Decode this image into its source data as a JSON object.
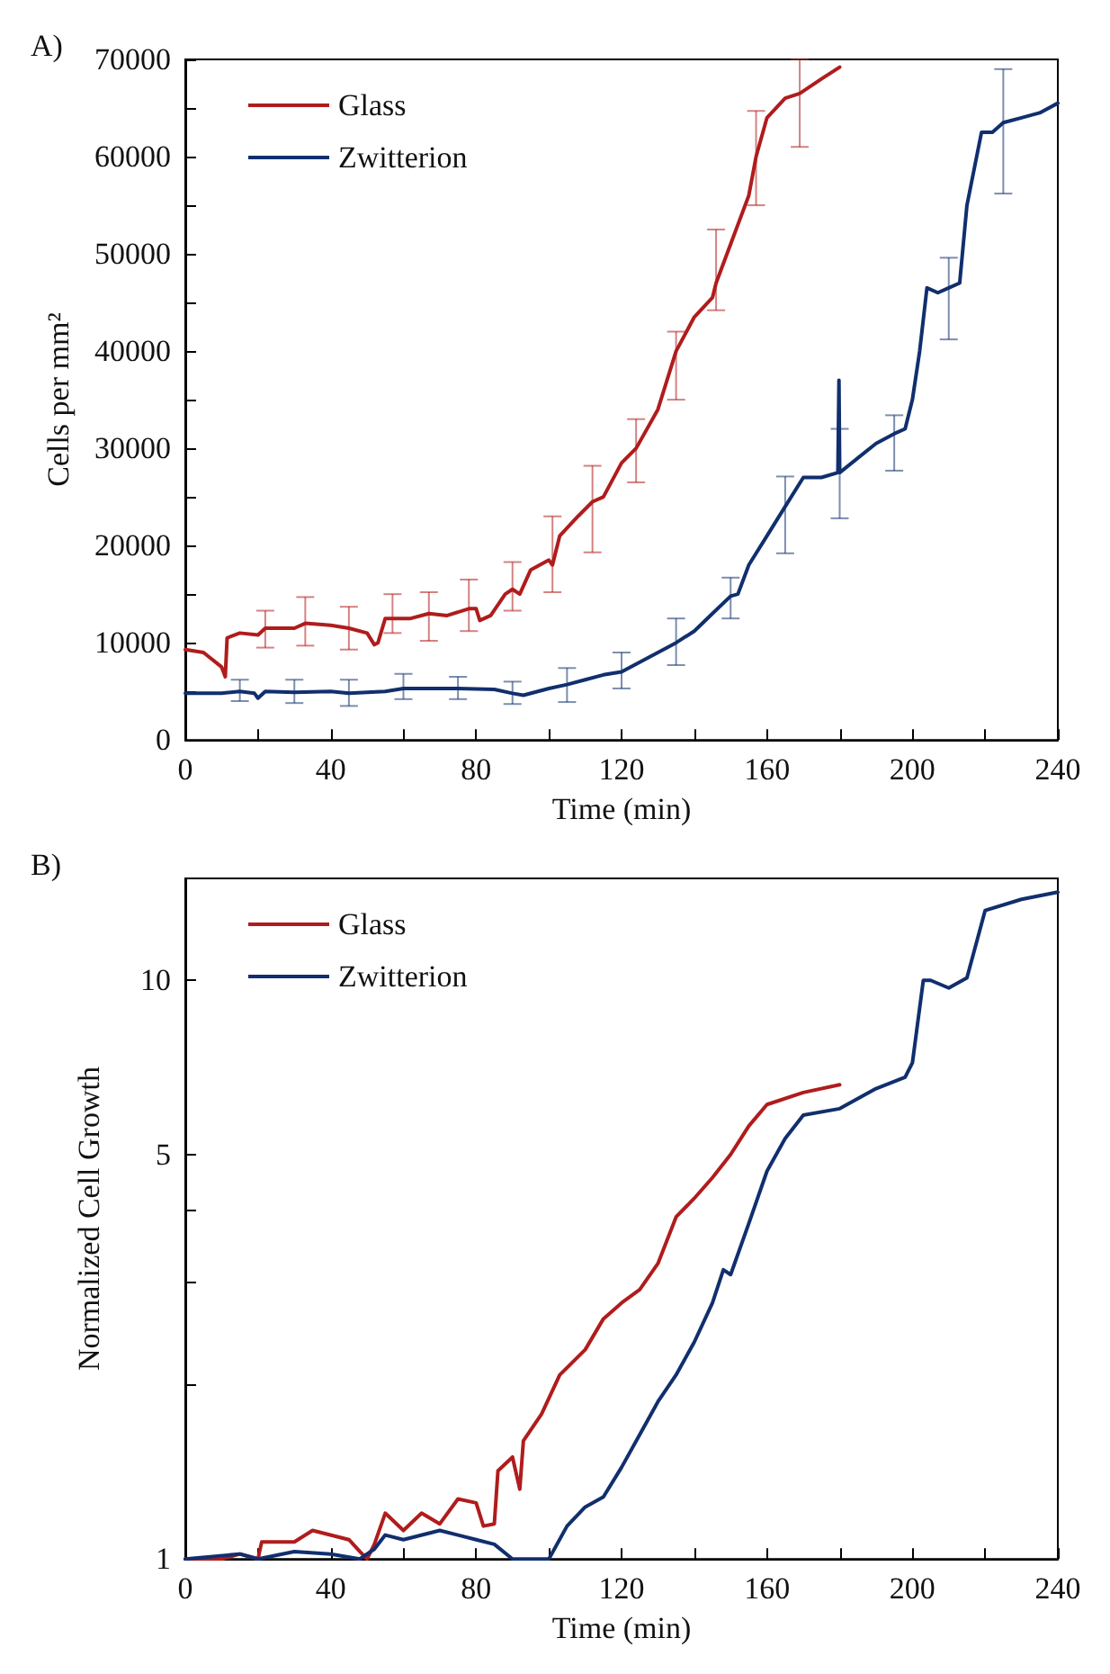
{
  "chart_data": [
    {
      "type": "line",
      "title": "A)",
      "xlabel": "Time (min)",
      "ylabel": "Cells per mm²",
      "xlim": [
        0,
        240
      ],
      "ylim": [
        0,
        70000
      ],
      "xticks": [
        0,
        {
          "value": 20,
          "label": null
        },
        40,
        {
          "value": 60,
          "label": null
        },
        80,
        {
          "value": 100,
          "label": null
        },
        120,
        {
          "value": 140,
          "label": null
        },
        160,
        {
          "value": 180,
          "label": null
        },
        200,
        {
          "value": 220,
          "label": null
        },
        240
      ],
      "yticks": [
        0,
        {
          "value": 5000,
          "label": null
        },
        10000,
        {
          "value": 15000,
          "label": null
        },
        20000,
        {
          "value": 25000,
          "label": null
        },
        30000,
        {
          "value": 35000,
          "label": null
        },
        40000,
        {
          "value": 45000,
          "label": null
        },
        50000,
        {
          "value": 55000,
          "label": null
        },
        60000,
        {
          "value": 65000,
          "label": null
        },
        70000
      ],
      "grid": false,
      "legend": "top left",
      "series": [
        {
          "name": "Glass",
          "color": "#b01c1c",
          "x": [
            0,
            5,
            10,
            11,
            11.5,
            15,
            20,
            22,
            30,
            33,
            40,
            45,
            50,
            52,
            53,
            55,
            57,
            62,
            67,
            72,
            78,
            80,
            81,
            84,
            88,
            90,
            92,
            95,
            100,
            101,
            103,
            108,
            112,
            115,
            120,
            124,
            130,
            135,
            140,
            145,
            146,
            150,
            155,
            157,
            160,
            165,
            169,
            175,
            180
          ],
          "values": [
            9300,
            9000,
            7500,
            6500,
            10500,
            11000,
            10800,
            11500,
            11500,
            12000,
            11800,
            11500,
            11000,
            9800,
            10000,
            12500,
            12500,
            12500,
            13000,
            12800,
            13500,
            13500,
            12300,
            12800,
            15000,
            15500,
            15000,
            17500,
            18500,
            18000,
            21000,
            23000,
            24500,
            25000,
            28500,
            30000,
            34000,
            40000,
            43500,
            45500,
            47000,
            51000,
            56000,
            60000,
            64000,
            66000,
            66500,
            68000,
            69200
          ],
          "errors": [
            null,
            null,
            null,
            null,
            null,
            null,
            null,
            [
              9500,
              13300
            ],
            null,
            [
              9700,
              14700
            ],
            null,
            [
              9300,
              13700
            ],
            null,
            null,
            null,
            null,
            [
              11000,
              15000
            ],
            null,
            [
              10200,
              15200
            ],
            null,
            [
              11200,
              16500
            ],
            null,
            null,
            null,
            null,
            [
              13300,
              18300
            ],
            null,
            null,
            null,
            [
              15200,
              23000
            ],
            null,
            null,
            [
              19300,
              28200
            ],
            null,
            null,
            [
              26500,
              33000
            ],
            null,
            [
              35000,
              42000
            ],
            null,
            null,
            [
              44200,
              52500
            ],
            null,
            null,
            [
              55000,
              64700
            ],
            null,
            null,
            [
              61000,
              70000
            ],
            null,
            null
          ]
        },
        {
          "name": "Zwitterion",
          "color": "#112f6e",
          "x": [
            0,
            10,
            15,
            19,
            20,
            22,
            30,
            40,
            45,
            55,
            60,
            70,
            75,
            85,
            90,
            93,
            100,
            105,
            110,
            115,
            120,
            125,
            130,
            135,
            140,
            145,
            150,
            152,
            155,
            160,
            165,
            170,
            175,
            179.5,
            179.8,
            180,
            185,
            190,
            195,
            198,
            200,
            202,
            204,
            207,
            210,
            213,
            215,
            219,
            222,
            225,
            230,
            235,
            240
          ],
          "values": [
            4800,
            4800,
            5000,
            4800,
            4300,
            5000,
            4900,
            5000,
            4800,
            5000,
            5300,
            5300,
            5300,
            5200,
            4800,
            4600,
            5300,
            5700,
            6200,
            6700,
            7000,
            8000,
            9000,
            10000,
            11200,
            13000,
            14800,
            15000,
            18000,
            21000,
            24000,
            27000,
            27000,
            27500,
            37000,
            27500,
            29000,
            30500,
            31500,
            32000,
            35000,
            40000,
            46500,
            46000,
            46500,
            47000,
            55000,
            62500,
            62500,
            63500,
            64000,
            64500,
            65500
          ],
          "errors": [
            null,
            null,
            [
              4000,
              6200
            ],
            null,
            null,
            null,
            [
              3800,
              6200
            ],
            null,
            [
              3500,
              6200
            ],
            null,
            [
              4200,
              6800
            ],
            null,
            [
              4200,
              6500
            ],
            null,
            [
              3700,
              6000
            ],
            null,
            null,
            [
              3900,
              7400
            ],
            null,
            null,
            [
              5300,
              9000
            ],
            null,
            null,
            [
              7700,
              12500
            ],
            null,
            null,
            [
              12500,
              16700
            ],
            null,
            null,
            null,
            [
              19200,
              27100
            ],
            null,
            null,
            null,
            null,
            [
              22800,
              32000
            ],
            null,
            null,
            [
              27700,
              33400
            ],
            null,
            null,
            null,
            null,
            null,
            [
              41200,
              49600
            ],
            null,
            null,
            null,
            null,
            [
              56200,
              69000
            ],
            null,
            null,
            null
          ]
        }
      ]
    },
    {
      "type": "line",
      "title": "B)",
      "xlabel": "Time (min)",
      "ylabel": "Normalized Cell Growth",
      "log": "y",
      "xlim": [
        0,
        240
      ],
      "ylim": [
        1,
        15
      ],
      "xticks": [
        0,
        {
          "value": 20,
          "label": null
        },
        40,
        {
          "value": 60,
          "label": null
        },
        80,
        {
          "value": 100,
          "label": null
        },
        120,
        {
          "value": 140,
          "label": null
        },
        160,
        {
          "value": 180,
          "label": null
        },
        200,
        {
          "value": 220,
          "label": null
        },
        240
      ],
      "yticks": [
        1,
        {
          "value": 2,
          "label": null
        },
        {
          "value": 3,
          "label": null
        },
        {
          "value": 4,
          "label": null
        },
        5,
        10
      ],
      "grid": false,
      "legend": "top left",
      "series": [
        {
          "name": "Glass",
          "color": "#b01c1c",
          "x": [
            0,
            10,
            15,
            20,
            21,
            30,
            35,
            45,
            48,
            50,
            52,
            55,
            60,
            65,
            70,
            75,
            80,
            82,
            85,
            86,
            90,
            92,
            93,
            98,
            103,
            110,
            115,
            120,
            125,
            130,
            135,
            140,
            145,
            150,
            155,
            160,
            170,
            180
          ],
          "values": [
            1,
            1,
            1.02,
            1,
            1.07,
            1.07,
            1.12,
            1.08,
            1.03,
            1,
            1.06,
            1.2,
            1.12,
            1.2,
            1.15,
            1.27,
            1.25,
            1.14,
            1.15,
            1.42,
            1.5,
            1.32,
            1.6,
            1.78,
            2.08,
            2.3,
            2.6,
            2.77,
            2.92,
            3.24,
            3.9,
            4.2,
            4.56,
            5,
            5.6,
            6.1,
            6.4,
            6.6
          ]
        },
        {
          "name": "Zwitterion",
          "color": "#112f6e",
          "x": [
            0,
            15,
            20,
            30,
            40,
            48,
            52,
            55,
            60,
            70,
            75,
            80,
            85,
            90,
            95,
            100,
            105,
            110,
            115,
            120,
            125,
            130,
            135,
            140,
            145,
            148,
            150,
            155,
            160,
            165,
            170,
            180,
            190,
            198,
            200,
            203,
            205,
            210,
            215,
            220,
            230,
            240
          ],
          "values": [
            1,
            1.02,
            1,
            1.03,
            1.02,
            1,
            1.04,
            1.1,
            1.08,
            1.12,
            1.1,
            1.08,
            1.06,
            1,
            1,
            1,
            1.14,
            1.23,
            1.28,
            1.44,
            1.64,
            1.87,
            2.08,
            2.37,
            2.77,
            3.16,
            3.1,
            3.8,
            4.68,
            5.33,
            5.85,
            6,
            6.5,
            6.8,
            7.2,
            10,
            10,
            9.7,
            10.1,
            13.2,
            13.8,
            14.2
          ]
        }
      ]
    }
  ]
}
